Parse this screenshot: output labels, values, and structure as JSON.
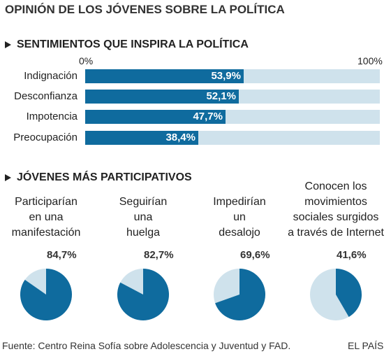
{
  "title": "OPINIÓN DE LOS JÓVENES SOBRE LA POLÍTICA",
  "colors": {
    "dark": "#0f6b9e",
    "light": "#cfe2ec"
  },
  "chart_data": [
    {
      "type": "bar",
      "title": "SENTIMIENTOS QUE INSPIRA LA POLÍTICA",
      "axis_ticks": [
        "0%",
        "100%"
      ],
      "xlim": [
        0,
        100
      ],
      "categories": [
        "Indignación",
        "Desconfianza",
        "Impotencia",
        "Preocupación"
      ],
      "values": [
        53.9,
        52.1,
        47.7,
        38.4
      ],
      "value_labels": [
        "53,9%",
        "52,1%",
        "47,7%",
        "38,4%"
      ]
    },
    {
      "type": "pie",
      "title": "JÓVENES MÁS PARTICIPATIVOS",
      "charts": [
        {
          "label_lines": [
            "Participarían",
            "en una",
            "manifestación"
          ],
          "value": 84.7,
          "value_label": "84,7%"
        },
        {
          "label_lines": [
            "Seguirían",
            "una",
            "huelga"
          ],
          "value": 82.7,
          "value_label": "82,7%"
        },
        {
          "label_lines": [
            "Impedirían",
            "un",
            "desalojo"
          ],
          "value": 69.6,
          "value_label": "69,6%"
        },
        {
          "label_lines": [
            "Conocen los",
            "movimientos",
            "sociales surgidos",
            "a través de Internet"
          ],
          "value": 41.6,
          "value_label": "41,6%"
        }
      ]
    }
  ],
  "footer": {
    "source": "Fuente: Centro Reina Sofía sobre Adolescencia y Juventud y FAD.",
    "brand": "EL PAÍS"
  }
}
